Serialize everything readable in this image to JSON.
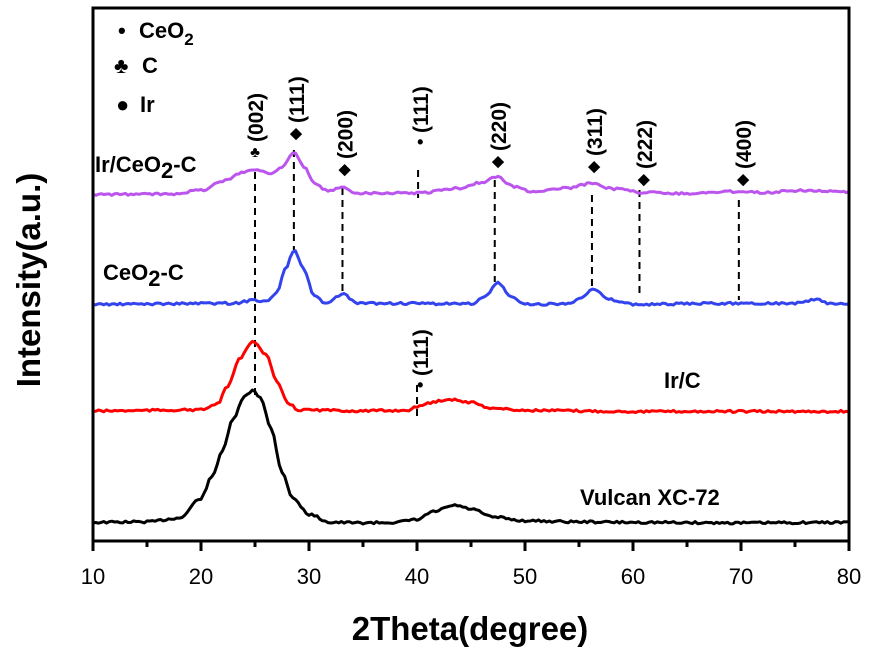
{
  "chart_data": {
    "type": "line",
    "xlabel": "2Theta(degree)",
    "ylabel": "Intensity(a.u.)",
    "xlim": [
      10,
      80
    ],
    "ylim": [
      0,
      100
    ],
    "xticks": [
      "10",
      "20",
      "30",
      "40",
      "50",
      "60",
      "70",
      "80"
    ],
    "grid": false,
    "legend": {
      "placement": "top-left",
      "entries": [
        {
          "symbol": "•",
          "label": "CeO",
          "sub": "2"
        },
        {
          "symbol": "♣",
          "label": "C",
          "sub": ""
        },
        {
          "symbol": "●",
          "label": "Ir",
          "sub": ""
        }
      ]
    },
    "series": [
      {
        "name": "Vulcan XC-72",
        "color": "#000000",
        "points": [
          [
            10,
            3.5
          ],
          [
            15,
            3.6
          ],
          [
            18,
            4.3
          ],
          [
            20,
            8
          ],
          [
            21,
            12
          ],
          [
            22,
            17
          ],
          [
            23,
            23
          ],
          [
            24,
            27
          ],
          [
            24.8,
            28.3
          ],
          [
            25.5,
            27
          ],
          [
            26.5,
            21
          ],
          [
            27.5,
            13
          ],
          [
            28.5,
            8
          ],
          [
            30,
            5
          ],
          [
            32,
            3.5
          ],
          [
            35,
            3.4
          ],
          [
            38,
            3.5
          ],
          [
            40,
            4
          ],
          [
            41.5,
            5.5
          ],
          [
            43.5,
            6.7
          ],
          [
            45,
            6
          ],
          [
            47,
            4.5
          ],
          [
            50,
            3.8
          ],
          [
            55,
            3.6
          ],
          [
            60,
            3.5
          ],
          [
            70,
            3.4
          ],
          [
            80,
            3.5
          ]
        ]
      },
      {
        "name": "Ir/C",
        "color": "#ff0000",
        "points": [
          [
            10,
            24.4
          ],
          [
            20,
            24.6
          ],
          [
            21.5,
            25.7
          ],
          [
            22.5,
            29
          ],
          [
            23.5,
            34
          ],
          [
            24.8,
            37.6
          ],
          [
            26,
            35
          ],
          [
            27,
            30
          ],
          [
            28,
            26
          ],
          [
            29,
            24.6
          ],
          [
            35,
            24.4
          ],
          [
            39,
            24.5
          ],
          [
            40,
            25.1
          ],
          [
            41,
            25.9
          ],
          [
            43,
            26.6
          ],
          [
            45,
            26
          ],
          [
            47,
            24.9
          ],
          [
            50,
            24.5
          ],
          [
            60,
            24.3
          ],
          [
            80,
            24.3
          ]
        ]
      },
      {
        "name": "CeO2-C",
        "name_main": "CeO",
        "name_sub": "2",
        "name_tail": "-C",
        "color": "#3344ee",
        "points": [
          [
            10,
            44.4
          ],
          [
            23,
            44.6
          ],
          [
            25,
            45.2
          ],
          [
            26,
            45
          ],
          [
            27,
            46.5
          ],
          [
            27.8,
            51
          ],
          [
            28.6,
            54.5
          ],
          [
            29.5,
            51
          ],
          [
            30.5,
            46
          ],
          [
            31.5,
            44.5
          ],
          [
            33.1,
            46.3
          ],
          [
            34.5,
            44.6
          ],
          [
            45,
            44.5
          ],
          [
            46.3,
            45.8
          ],
          [
            47.5,
            48.5
          ],
          [
            48.7,
            45.8
          ],
          [
            50,
            44.4
          ],
          [
            54,
            44.5
          ],
          [
            55.2,
            45.8
          ],
          [
            56.3,
            47.2
          ],
          [
            57.8,
            45.3
          ],
          [
            60,
            44.4
          ],
          [
            70,
            44.6
          ],
          [
            75,
            44.6
          ],
          [
            77,
            45.3
          ],
          [
            78,
            44.6
          ],
          [
            80,
            44.4
          ]
        ]
      },
      {
        "name": "Ir/CeO2-C",
        "name_main": "Ir/CeO",
        "name_sub": "2",
        "name_tail": "-C",
        "color": "#bb55ee",
        "points": [
          [
            10,
            65
          ],
          [
            17,
            65.1
          ],
          [
            20,
            65.8
          ],
          [
            22,
            67.5
          ],
          [
            24,
            69.3
          ],
          [
            25,
            69.7
          ],
          [
            26.5,
            68.9
          ],
          [
            27.5,
            70.3
          ],
          [
            28.6,
            72.9
          ],
          [
            29.6,
            70
          ],
          [
            30.5,
            67
          ],
          [
            31.7,
            65.7
          ],
          [
            33.1,
            66.3
          ],
          [
            34.5,
            65.3
          ],
          [
            40,
            65.3
          ],
          [
            44,
            66.2
          ],
          [
            46,
            67.3
          ],
          [
            47.4,
            68.3
          ],
          [
            49,
            66.5
          ],
          [
            50.5,
            65.6
          ],
          [
            54,
            66.2
          ],
          [
            56.3,
            67.2
          ],
          [
            58,
            66.1
          ],
          [
            61,
            65.4
          ],
          [
            65,
            65.2
          ],
          [
            70,
            65.6
          ],
          [
            72,
            65.4
          ],
          [
            76,
            65.8
          ],
          [
            80,
            65.4
          ]
        ]
      }
    ],
    "annotations": [
      {
        "label": "(002)",
        "phase": "C",
        "symbol": "♣",
        "x": 25
      },
      {
        "label": "(111)",
        "phase": "CeO2",
        "symbol": "◆",
        "x": 28.8
      },
      {
        "label": "(200)",
        "phase": "CeO2",
        "symbol": "◆",
        "x": 33.3
      },
      {
        "label": "(111)",
        "phase": "Ir",
        "symbol": "•",
        "x": 40.3
      },
      {
        "label": "(220)",
        "phase": "CeO2",
        "symbol": "◆",
        "x": 47.5
      },
      {
        "label": "(311)",
        "phase": "CeO2",
        "symbol": "◆",
        "x": 56.4
      },
      {
        "label": "(222)",
        "phase": "CeO2",
        "symbol": "◆",
        "x": 61
      },
      {
        "label": "(400)",
        "phase": "CeO2",
        "symbol": "◆",
        "x": 70.2
      },
      {
        "label": "(111)",
        "phase": "Ir",
        "symbol": "•",
        "x": 40.3
      }
    ]
  }
}
